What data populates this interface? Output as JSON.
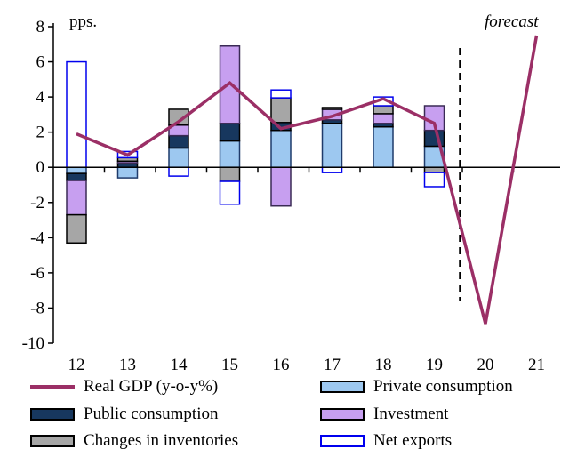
{
  "chart_data": {
    "type": "bar",
    "unit_label": "pps.",
    "annotation": "forecast",
    "categories": [
      "12",
      "13",
      "14",
      "15",
      "16",
      "17",
      "18",
      "19",
      "20",
      "21"
    ],
    "ylim": [
      -10,
      8
    ],
    "yticks": [
      8,
      6,
      4,
      2,
      0,
      -2,
      -4,
      -6,
      -8,
      -10
    ],
    "grid": false,
    "legend_position": "bottom",
    "stacked_bars": [
      {
        "name": "Private consumption",
        "color": "#9dc8f0",
        "stroke": "#1f3b6b",
        "values": [
          -0.35,
          -0.6,
          1.1,
          1.5,
          2.1,
          2.5,
          2.3,
          1.2,
          null,
          null
        ]
      },
      {
        "name": "Public consumption",
        "color": "#17375e",
        "stroke": "#000000",
        "values": [
          -0.4,
          0.25,
          0.7,
          1.0,
          0.45,
          0.2,
          0.2,
          0.9,
          null,
          null
        ]
      },
      {
        "name": "Investment",
        "color": "#c79ff0",
        "stroke": "#3a2a55",
        "values": [
          -1.95,
          0.1,
          0.6,
          4.4,
          -2.2,
          0.6,
          0.55,
          1.4,
          null,
          null
        ]
      },
      {
        "name": "Changes in inventories",
        "color": "#a6a6a6",
        "stroke": "#000000",
        "values": [
          -1.6,
          0.2,
          0.9,
          -0.8,
          1.4,
          0.1,
          0.45,
          -0.3,
          null,
          null
        ]
      },
      {
        "name": "Net exports",
        "color": "#ffffff",
        "stroke": "#0000ee",
        "values": [
          6.0,
          0.35,
          -0.5,
          -1.3,
          0.45,
          -0.3,
          0.5,
          -0.8,
          null,
          null
        ]
      }
    ],
    "line_series": {
      "name": "Real GDP (y-o-y%)",
      "color": "#9b2f66",
      "values": [
        1.9,
        0.7,
        2.6,
        4.8,
        2.2,
        2.9,
        3.9,
        2.5,
        -8.9,
        7.5
      ]
    },
    "legend": [
      {
        "label": "Real GDP (y-o-y%)",
        "type": "line",
        "color": "#9b2f66"
      },
      {
        "label": "Private consumption",
        "type": "box",
        "color": "#9dc8f0",
        "stroke": "#000000"
      },
      {
        "label": "Public consumption",
        "type": "box",
        "color": "#17375e",
        "stroke": "#000000"
      },
      {
        "label": "Investment",
        "type": "box",
        "color": "#c79ff0",
        "stroke": "#000000"
      },
      {
        "label": "Changes in inventories",
        "type": "box",
        "color": "#a6a6a6",
        "stroke": "#000000"
      },
      {
        "label": "Net exports",
        "type": "box",
        "color": "#ffffff",
        "stroke": "#0000ee"
      }
    ]
  }
}
